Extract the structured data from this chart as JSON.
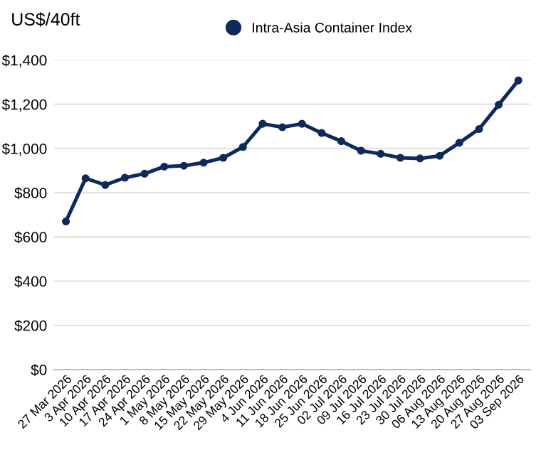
{
  "chart_data": {
    "type": "line",
    "ylabel": "US$/40ft",
    "categories": [
      "27 Mar 2026",
      "3 Apr 2026",
      "10 Apr 2026",
      "17 Apr 2026",
      "24 Apr 2026",
      "1 May 2026",
      "8 May 2026",
      "15 May 2026",
      "22 May 2026",
      "29 May 2026",
      "4 Jun 2026",
      "11 Jun 2026",
      "18 Jun 2026",
      "25 Jun 2026",
      "02 Jul 2026",
      "09 Jul 2026",
      "16 Jul 2026",
      "23 Jul 2026",
      "30 Jul 2026",
      "06 Aug 2026",
      "13 Aug 2026",
      "20 Aug 2026",
      "27 Aug 2026",
      "03 Sep 2026"
    ],
    "series": [
      {
        "name": "Intra-Asia Container Index",
        "color": "#0d2a5c",
        "values": [
          670,
          865,
          835,
          868,
          886,
          918,
          922,
          936,
          958,
          1007,
          1112,
          1096,
          1112,
          1070,
          1033,
          990,
          976,
          958,
          955,
          967,
          1026,
          1088,
          1198,
          1308
        ]
      }
    ],
    "ylim": [
      0,
      1400
    ],
    "yticks": [
      {
        "value": 0,
        "label": "$0"
      },
      {
        "value": 200,
        "label": "$200"
      },
      {
        "value": 400,
        "label": "$400"
      },
      {
        "value": 600,
        "label": "$600"
      },
      {
        "value": 800,
        "label": "$800"
      },
      {
        "value": 1000,
        "label": "$1,000"
      },
      {
        "value": 1200,
        "label": "$1,200"
      },
      {
        "value": 1400,
        "label": "$1,400"
      }
    ],
    "grid": "y",
    "legend": "top",
    "marker": "circle",
    "line_style": "solid"
  }
}
